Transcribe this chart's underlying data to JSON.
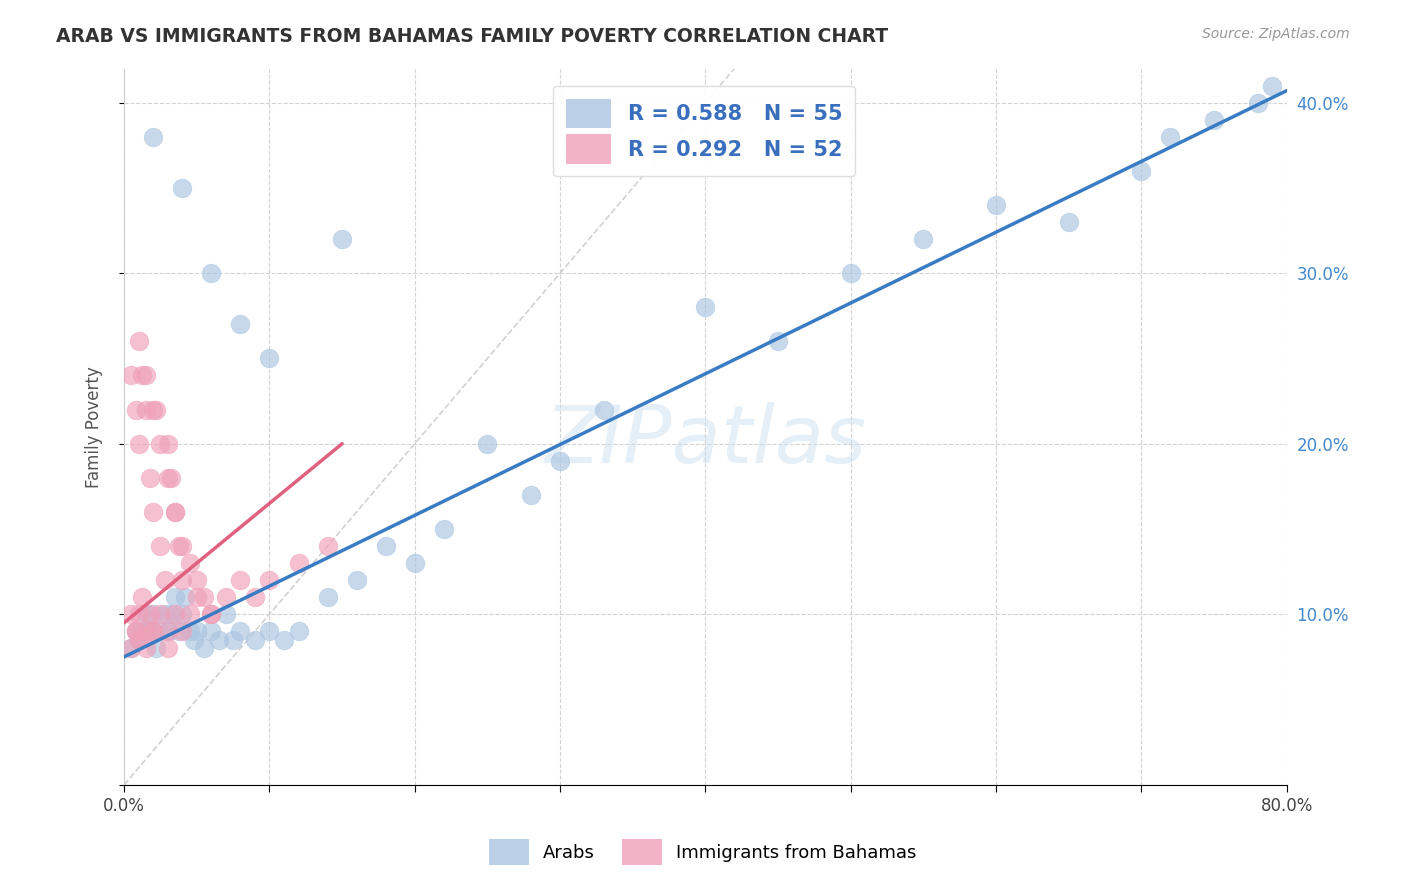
{
  "title": "ARAB VS IMMIGRANTS FROM BAHAMAS FAMILY POVERTY CORRELATION CHART",
  "source": "Source: ZipAtlas.com",
  "ylabel": "Family Poverty",
  "xlim": [
    0,
    0.8
  ],
  "ylim": [
    0,
    0.42
  ],
  "xticks": [
    0.0,
    0.1,
    0.2,
    0.3,
    0.4,
    0.5,
    0.6,
    0.7,
    0.8
  ],
  "xtick_labels": [
    "0.0%",
    "",
    "",
    "",
    "",
    "",
    "",
    "",
    "80.0%"
  ],
  "yticks": [
    0.0,
    0.1,
    0.2,
    0.3,
    0.4
  ],
  "ytick_right_labels": [
    "",
    "10.0%",
    "20.0%",
    "30.0%",
    "40.0%"
  ],
  "grid_color": "#c8c8c8",
  "watermark": "ZIPatlas",
  "arab_color": "#aac4e0",
  "bahamas_color": "#f0a0b8",
  "arab_line_color": "#3a7cc4",
  "bahamas_line_color": "#e06080",
  "diag_line_color": "#cccccc",
  "legend_arab_R": 0.588,
  "legend_arab_N": 55,
  "legend_bahamas_R": 0.292,
  "legend_bahamas_N": 52,
  "arab_scatter_x": [
    0.005,
    0.008,
    0.01,
    0.012,
    0.015,
    0.018,
    0.02,
    0.022,
    0.025,
    0.028,
    0.03,
    0.032,
    0.035,
    0.038,
    0.04,
    0.042,
    0.045,
    0.048,
    0.05,
    0.055,
    0.06,
    0.065,
    0.07,
    0.075,
    0.08,
    0.09,
    0.1,
    0.11,
    0.12,
    0.14,
    0.16,
    0.18,
    0.2,
    0.22,
    0.25,
    0.28,
    0.3,
    0.33,
    0.4,
    0.45,
    0.5,
    0.55,
    0.6,
    0.65,
    0.7,
    0.72,
    0.75,
    0.78,
    0.79,
    0.02,
    0.04,
    0.06,
    0.08,
    0.1,
    0.15
  ],
  "arab_scatter_y": [
    0.08,
    0.09,
    0.085,
    0.09,
    0.1,
    0.09,
    0.1,
    0.08,
    0.09,
    0.1,
    0.09,
    0.1,
    0.11,
    0.09,
    0.1,
    0.11,
    0.09,
    0.085,
    0.09,
    0.08,
    0.09,
    0.085,
    0.1,
    0.085,
    0.09,
    0.085,
    0.09,
    0.085,
    0.09,
    0.11,
    0.12,
    0.14,
    0.13,
    0.15,
    0.2,
    0.17,
    0.19,
    0.22,
    0.28,
    0.26,
    0.3,
    0.32,
    0.34,
    0.33,
    0.36,
    0.38,
    0.39,
    0.4,
    0.41,
    0.38,
    0.35,
    0.3,
    0.27,
    0.25,
    0.32
  ],
  "bahamas_scatter_x": [
    0.005,
    0.008,
    0.01,
    0.012,
    0.015,
    0.018,
    0.02,
    0.022,
    0.025,
    0.028,
    0.03,
    0.032,
    0.035,
    0.038,
    0.04,
    0.01,
    0.015,
    0.02,
    0.025,
    0.03,
    0.035,
    0.04,
    0.045,
    0.05,
    0.055,
    0.06,
    0.005,
    0.008,
    0.01,
    0.012,
    0.015,
    0.018,
    0.02,
    0.025,
    0.03,
    0.035,
    0.04,
    0.045,
    0.05,
    0.06,
    0.07,
    0.08,
    0.09,
    0.1,
    0.12,
    0.14,
    0.005,
    0.008,
    0.01,
    0.015,
    0.02,
    0.03
  ],
  "bahamas_scatter_y": [
    0.24,
    0.22,
    0.2,
    0.24,
    0.22,
    0.18,
    0.16,
    0.22,
    0.14,
    0.12,
    0.2,
    0.18,
    0.16,
    0.14,
    0.12,
    0.26,
    0.24,
    0.22,
    0.2,
    0.18,
    0.16,
    0.14,
    0.13,
    0.12,
    0.11,
    0.1,
    0.1,
    0.09,
    0.1,
    0.11,
    0.09,
    0.1,
    0.09,
    0.1,
    0.09,
    0.1,
    0.09,
    0.1,
    0.11,
    0.1,
    0.11,
    0.12,
    0.11,
    0.12,
    0.13,
    0.14,
    0.08,
    0.09,
    0.085,
    0.08,
    0.09,
    0.08
  ]
}
